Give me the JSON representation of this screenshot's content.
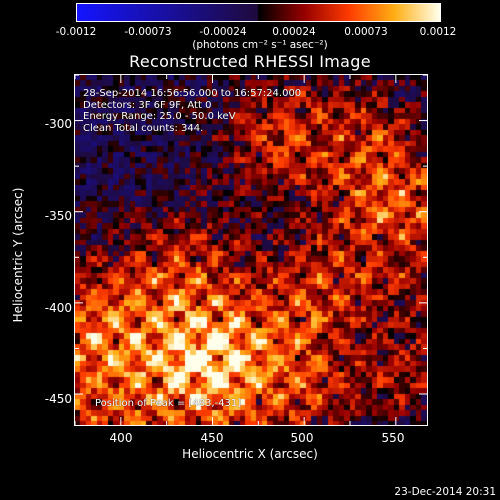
{
  "colorbar": {
    "ticks": [
      "-0.0012",
      "-0.00073",
      "-0.00024",
      "0.00024",
      "0.00073",
      "0.0012"
    ],
    "unit_label": "(photons cm⁻² s⁻¹ asec⁻²)",
    "range": [
      -0.0012,
      0.0012
    ]
  },
  "plot": {
    "title": "Reconstructed RHESSI Image",
    "annotation": [
      "28-Sep-2014 16:56:56.000 to 16:57:24.000",
      "Detectors: 3F 6F 9F, Att 0",
      "Energy Range: 25.0 - 50.0 keV",
      "Clean    Total counts: 344."
    ],
    "peak_label": "Position of Peak = [483,-431]"
  },
  "footer": {
    "timestamp": "23-Dec-2014 20:31"
  },
  "chart_data": {
    "type": "heatmap",
    "title": "Reconstructed RHESSI Image",
    "xlabel": "Heliocentric X (arcsec)",
    "ylabel": "Heliocentric Y (arcsec)",
    "xlim": [
      375,
      567
    ],
    "ylim": [
      -467,
      -275
    ],
    "xticks": [
      400,
      450,
      500,
      550
    ],
    "xtick_labels": [
      "400",
      "450",
      "500",
      "550"
    ],
    "yticks": [
      -300,
      -350,
      -400,
      -450
    ],
    "ytick_labels": [
      "-300",
      "-350",
      "-400",
      "-450"
    ],
    "colorscale": "red-temperature (blue negative, black zero, red-orange-yellow-white positive)",
    "color_range": [
      -0.0012,
      0.0012
    ],
    "peak_position": [
      483,
      -431
    ]
  }
}
